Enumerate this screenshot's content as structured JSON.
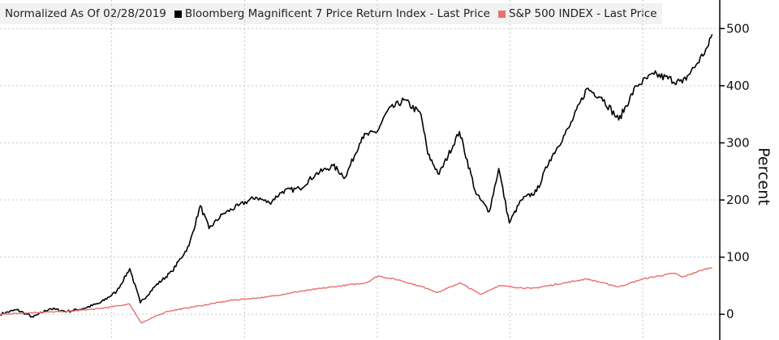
{
  "chart_data": {
    "type": "line",
    "title": "",
    "xlabel": "",
    "ylabel": "Percent",
    "ylim": [
      -45,
      550
    ],
    "yticks": [
      0,
      100,
      200,
      300,
      400,
      500
    ],
    "grid": true,
    "legend_position": "top-left",
    "legend_prefix": "Normalized As Of 02/28/2019",
    "x_range": [
      "2019-02-28",
      "2024-07-31"
    ],
    "series": [
      {
        "name": "Bloomberg Magnificent 7 Price Return Index - Last Price",
        "color": "#000000",
        "points": [
          [
            "2019-02-28",
            0
          ],
          [
            "2019-04-15",
            8
          ],
          [
            "2019-05-30",
            -5
          ],
          [
            "2019-07-15",
            10
          ],
          [
            "2019-09-01",
            5
          ],
          [
            "2019-10-15",
            10
          ],
          [
            "2019-12-01",
            20
          ],
          [
            "2020-01-15",
            40
          ],
          [
            "2020-02-20",
            80
          ],
          [
            "2020-03-20",
            20
          ],
          [
            "2020-05-01",
            50
          ],
          [
            "2020-06-15",
            75
          ],
          [
            "2020-08-01",
            120
          ],
          [
            "2020-09-01",
            190
          ],
          [
            "2020-09-25",
            150
          ],
          [
            "2020-11-01",
            175
          ],
          [
            "2020-12-15",
            190
          ],
          [
            "2021-02-01",
            205
          ],
          [
            "2021-03-10",
            195
          ],
          [
            "2021-04-15",
            215
          ],
          [
            "2021-06-01",
            220
          ],
          [
            "2021-07-15",
            245
          ],
          [
            "2021-09-01",
            260
          ],
          [
            "2021-10-05",
            240
          ],
          [
            "2021-11-20",
            310
          ],
          [
            "2022-01-01",
            320
          ],
          [
            "2022-01-28",
            355
          ],
          [
            "2022-03-15",
            375
          ],
          [
            "2022-05-01",
            350
          ],
          [
            "2022-05-20",
            280
          ],
          [
            "2022-06-20",
            245
          ],
          [
            "2022-08-15",
            320
          ],
          [
            "2022-09-30",
            210
          ],
          [
            "2022-11-05",
            180
          ],
          [
            "2022-12-01",
            255
          ],
          [
            "2022-12-30",
            160
          ],
          [
            "2023-02-01",
            200
          ],
          [
            "2023-03-15",
            215
          ],
          [
            "2023-04-20",
            270
          ],
          [
            "2023-06-15",
            330
          ],
          [
            "2023-07-31",
            395
          ],
          [
            "2023-09-10",
            380
          ],
          [
            "2023-10-27",
            340
          ],
          [
            "2023-12-15",
            400
          ],
          [
            "2024-02-01",
            420
          ],
          [
            "2024-04-19",
            405
          ],
          [
            "2024-05-31",
            440
          ],
          [
            "2024-06-30",
            470
          ],
          [
            "2024-07-10",
            490
          ]
        ]
      },
      {
        "name": "S&P 500 INDEX - Last Price",
        "color": "#e8706e",
        "points": [
          [
            "2019-02-28",
            0
          ],
          [
            "2019-06-01",
            3
          ],
          [
            "2019-09-01",
            5
          ],
          [
            "2019-12-01",
            10
          ],
          [
            "2020-02-19",
            18
          ],
          [
            "2020-03-23",
            -15
          ],
          [
            "2020-06-01",
            5
          ],
          [
            "2020-09-01",
            15
          ],
          [
            "2020-12-01",
            25
          ],
          [
            "2021-03-01",
            30
          ],
          [
            "2021-06-01",
            40
          ],
          [
            "2021-09-01",
            48
          ],
          [
            "2021-12-01",
            55
          ],
          [
            "2022-01-03",
            67
          ],
          [
            "2022-03-01",
            60
          ],
          [
            "2022-05-20",
            45
          ],
          [
            "2022-06-16",
            38
          ],
          [
            "2022-08-16",
            55
          ],
          [
            "2022-10-12",
            35
          ],
          [
            "2022-12-01",
            50
          ],
          [
            "2023-03-01",
            45
          ],
          [
            "2023-06-01",
            55
          ],
          [
            "2023-07-31",
            62
          ],
          [
            "2023-10-27",
            48
          ],
          [
            "2024-01-02",
            62
          ],
          [
            "2024-03-28",
            72
          ],
          [
            "2024-04-19",
            65
          ],
          [
            "2024-06-15",
            78
          ],
          [
            "2024-07-10",
            82
          ]
        ]
      }
    ]
  }
}
